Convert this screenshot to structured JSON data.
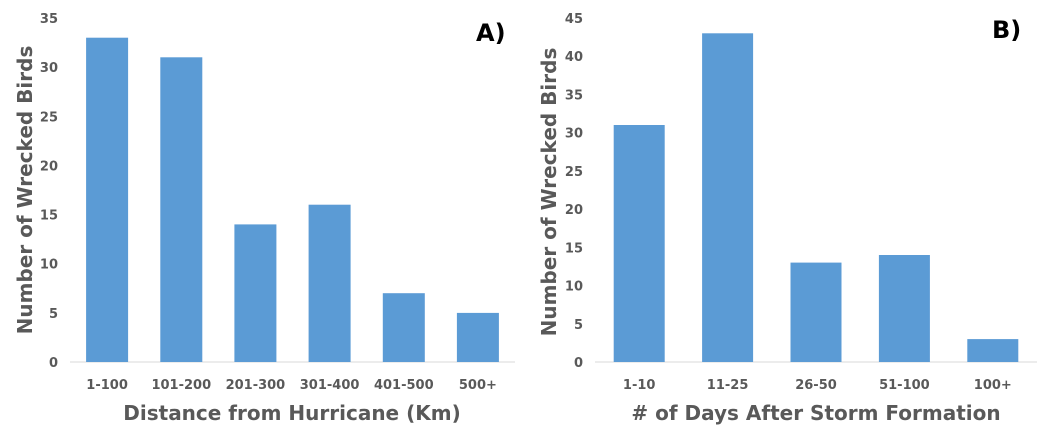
{
  "chart_data": [
    {
      "type": "bar",
      "panel_label": "A)",
      "categories": [
        "1-100",
        "101-200",
        "201-300",
        "301-400",
        "401-500",
        "500+"
      ],
      "values": [
        33,
        31,
        14,
        16,
        7,
        5
      ],
      "xlabel": "Distance from Hurricane (Km)",
      "ylabel": "Number of Wrecked Birds",
      "ylim": [
        0,
        35
      ],
      "yticks": [
        0,
        5,
        10,
        15,
        20,
        25,
        30,
        35
      ],
      "grid": false,
      "bar_color": "#5B9BD5"
    },
    {
      "type": "bar",
      "panel_label": "B)",
      "categories": [
        "1-10",
        "11-25",
        "26-50",
        "51-100",
        "100+"
      ],
      "values": [
        31,
        43,
        13,
        14,
        3
      ],
      "xlabel": "# of Days After Storm Formation",
      "ylabel": "Number of Wrecked Birds",
      "ylim": [
        0,
        45
      ],
      "yticks": [
        0,
        5,
        10,
        15,
        20,
        25,
        30,
        35,
        40,
        45
      ],
      "grid": false,
      "bar_color": "#5B9BD5"
    }
  ]
}
